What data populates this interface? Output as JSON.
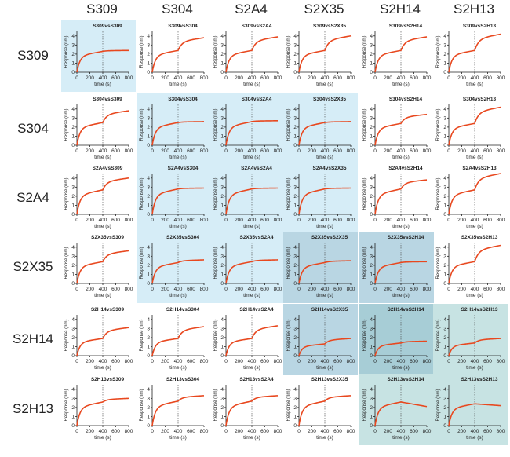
{
  "colors": {
    "curve": "#e8481f",
    "shade_light": "#d6edf7",
    "shade_mid": "#b9d6e3",
    "shade_teal": "#c7e3e3",
    "shade_dark": "#a7cdd6"
  },
  "column_labels": [
    "S309",
    "S304",
    "S2A4",
    "S2X35",
    "S2H14",
    "S2H13"
  ],
  "row_labels": [
    "S309",
    "S304",
    "S2A4",
    "S2X35",
    "S2H14",
    "S2H13"
  ],
  "chart_data": {
    "type": "line",
    "layout": "6x6 grid of binding competition sensorgrams",
    "xlabel": "time (s)",
    "ylabel": "Response (nm)",
    "xlim": [
      0,
      800
    ],
    "ylim": [
      0,
      4.5
    ],
    "xticks": [
      "0",
      "200",
      "400",
      "600",
      "800"
    ],
    "yticks": [
      "0",
      "1",
      "2",
      "3",
      "4"
    ],
    "second_injection_time": 400,
    "panels": [
      {
        "title": "S309vsS309",
        "row": 0,
        "col": 0,
        "stage1": 2.3,
        "stage2": 0.1,
        "shade": "light"
      },
      {
        "title": "S309vsS304",
        "row": 0,
        "col": 1,
        "stage1": 2.4,
        "stage2": 1.4,
        "shade": "none"
      },
      {
        "title": "S309vsS2A4",
        "row": 0,
        "col": 2,
        "stage1": 2.4,
        "stage2": 1.5,
        "shade": "none"
      },
      {
        "title": "S309vsS2X35",
        "row": 0,
        "col": 3,
        "stage1": 2.4,
        "stage2": 1.6,
        "shade": "none"
      },
      {
        "title": "S309vsS2H14",
        "row": 0,
        "col": 4,
        "stage1": 2.4,
        "stage2": 1.5,
        "shade": "none"
      },
      {
        "title": "S309vsS2H13",
        "row": 0,
        "col": 5,
        "stage1": 2.4,
        "stage2": 1.8,
        "shade": "none"
      },
      {
        "title": "S304vsS309",
        "row": 1,
        "col": 0,
        "stage1": 2.5,
        "stage2": 1.3,
        "shade": "none"
      },
      {
        "title": "S304vsS304",
        "row": 1,
        "col": 1,
        "stage1": 2.5,
        "stage2": 0.1,
        "shade": "light"
      },
      {
        "title": "S304vsS2A4",
        "row": 1,
        "col": 2,
        "stage1": 2.6,
        "stage2": 0.1,
        "shade": "light"
      },
      {
        "title": "S304vsS2X35",
        "row": 1,
        "col": 3,
        "stage1": 2.5,
        "stage2": 0.1,
        "shade": "light"
      },
      {
        "title": "S304vsS2H14",
        "row": 1,
        "col": 4,
        "stage1": 2.4,
        "stage2": 1.0,
        "shade": "none"
      },
      {
        "title": "S304vsS2H13",
        "row": 1,
        "col": 5,
        "stage1": 2.4,
        "stage2": 1.8,
        "shade": "none"
      },
      {
        "title": "S2A4vsS309",
        "row": 2,
        "col": 0,
        "stage1": 2.7,
        "stage2": 1.3,
        "shade": "none"
      },
      {
        "title": "S2A4vsS304",
        "row": 2,
        "col": 1,
        "stage1": 2.8,
        "stage2": 0.1,
        "shade": "light"
      },
      {
        "title": "S2A4vsS2A4",
        "row": 2,
        "col": 2,
        "stage1": 2.8,
        "stage2": 0.1,
        "shade": "light"
      },
      {
        "title": "S2A4vsS2X35",
        "row": 2,
        "col": 3,
        "stage1": 2.8,
        "stage2": 0.1,
        "shade": "light"
      },
      {
        "title": "S2A4vsS2H14",
        "row": 2,
        "col": 4,
        "stage1": 2.8,
        "stage2": 1.0,
        "shade": "none"
      },
      {
        "title": "S2A4vsS2H13",
        "row": 2,
        "col": 5,
        "stage1": 2.7,
        "stage2": 1.8,
        "shade": "none"
      },
      {
        "title": "S2X35vsS309",
        "row": 3,
        "col": 0,
        "stage1": 2.4,
        "stage2": 1.2,
        "shade": "none"
      },
      {
        "title": "S2X35vsS304",
        "row": 3,
        "col": 1,
        "stage1": 2.3,
        "stage2": 0.3,
        "shade": "light"
      },
      {
        "title": "S2X35vsS2A4",
        "row": 3,
        "col": 2,
        "stage1": 2.4,
        "stage2": 0.2,
        "shade": "light"
      },
      {
        "title": "S2X35vsS2X35",
        "row": 3,
        "col": 3,
        "stage1": 2.3,
        "stage2": 0.2,
        "shade": "mid"
      },
      {
        "title": "S2X35vsS2H14",
        "row": 3,
        "col": 4,
        "stage1": 2.3,
        "stage2": 0.1,
        "shade": "mid"
      },
      {
        "title": "S2X35vsS2H13",
        "row": 3,
        "col": 5,
        "stage1": 2.4,
        "stage2": 1.8,
        "shade": "none"
      },
      {
        "title": "S2H14vsS309",
        "row": 4,
        "col": 0,
        "stage1": 1.9,
        "stage2": 1.2,
        "shade": "none"
      },
      {
        "title": "S2H14vsS304",
        "row": 4,
        "col": 1,
        "stage1": 1.9,
        "stage2": 1.3,
        "shade": "none"
      },
      {
        "title": "S2H14vsS2A4",
        "row": 4,
        "col": 2,
        "stage1": 1.9,
        "stage2": 1.4,
        "shade": "none"
      },
      {
        "title": "S2H14vsS2X35",
        "row": 4,
        "col": 3,
        "stage1": 1.3,
        "stage2": 0.6,
        "shade": "mid"
      },
      {
        "title": "S2H14vsS2H14",
        "row": 4,
        "col": 4,
        "stage1": 1.4,
        "stage2": 0.2,
        "shade": "dark"
      },
      {
        "title": "S2H14vsS2H13",
        "row": 4,
        "col": 5,
        "stage1": 1.4,
        "stage2": 0.5,
        "shade": "teal"
      },
      {
        "title": "S2H13vsS309",
        "row": 5,
        "col": 0,
        "stage1": 2.6,
        "stage2": 0.4,
        "shade": "none"
      },
      {
        "title": "S2H13vsS304",
        "row": 5,
        "col": 1,
        "stage1": 2.7,
        "stage2": 0.6,
        "shade": "none"
      },
      {
        "title": "S2H13vsS2A4",
        "row": 5,
        "col": 2,
        "stage1": 2.7,
        "stage2": 0.6,
        "shade": "none"
      },
      {
        "title": "S2H13vsS2X35",
        "row": 5,
        "col": 3,
        "stage1": 2.7,
        "stage2": 0.6,
        "shade": "none"
      },
      {
        "title": "S2H13vsS2H14",
        "row": 5,
        "col": 4,
        "stage1": 2.6,
        "stage2": -0.5,
        "shade": "teal"
      },
      {
        "title": "S2H13vsS2H13",
        "row": 5,
        "col": 5,
        "stage1": 2.4,
        "stage2": -0.2,
        "shade": "teal"
      }
    ]
  }
}
